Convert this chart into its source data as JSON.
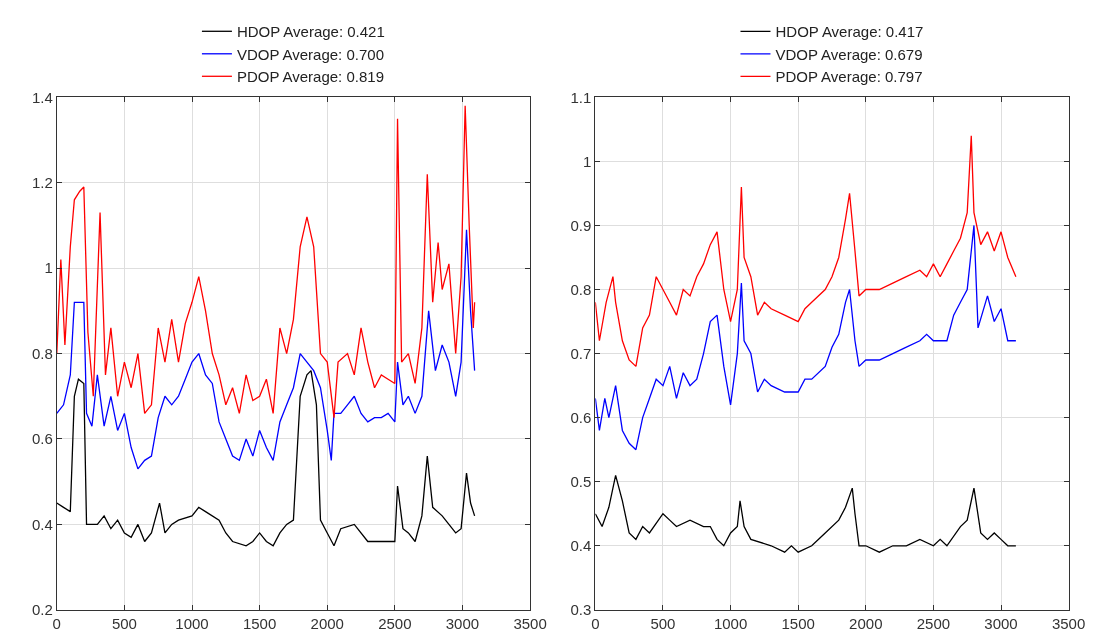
{
  "chart_data": [
    {
      "type": "line",
      "xlim": [
        0,
        3500
      ],
      "xticks": [
        0,
        500,
        1000,
        1500,
        2000,
        2500,
        3000,
        3500
      ],
      "ylim": [
        0.2,
        1.4
      ],
      "yticks": [
        0.2,
        0.4,
        0.6,
        0.8,
        1,
        1.2,
        1.4
      ],
      "grid": true,
      "legend": "top",
      "marker": "none",
      "line_style": "solid",
      "series": [
        {
          "name": "HDOP Average: 0.421",
          "color": "#000000",
          "x": [
            0,
            50,
            100,
            130,
            160,
            200,
            220,
            300,
            350,
            400,
            450,
            500,
            550,
            600,
            650,
            700,
            760,
            800,
            850,
            900,
            1000,
            1050,
            1100,
            1200,
            1250,
            1300,
            1400,
            1450,
            1500,
            1550,
            1600,
            1650,
            1700,
            1750,
            1800,
            1850,
            1880,
            1920,
            1950,
            2000,
            2050,
            2100,
            2200,
            2300,
            2400,
            2500,
            2520,
            2560,
            2600,
            2650,
            2700,
            2740,
            2780,
            2850,
            2900,
            2950,
            2990,
            3030,
            3060,
            3090
          ],
          "values": [
            0.45,
            0.44,
            0.43,
            0.7,
            0.74,
            0.73,
            0.4,
            0.4,
            0.42,
            0.39,
            0.41,
            0.38,
            0.37,
            0.4,
            0.36,
            0.38,
            0.45,
            0.38,
            0.4,
            0.41,
            0.42,
            0.44,
            0.43,
            0.41,
            0.38,
            0.36,
            0.35,
            0.36,
            0.38,
            0.36,
            0.35,
            0.38,
            0.4,
            0.41,
            0.7,
            0.75,
            0.76,
            0.68,
            0.41,
            0.38,
            0.35,
            0.39,
            0.4,
            0.36,
            0.36,
            0.36,
            0.49,
            0.39,
            0.38,
            0.36,
            0.42,
            0.56,
            0.44,
            0.42,
            0.4,
            0.38,
            0.39,
            0.52,
            0.45,
            0.42
          ]
        },
        {
          "name": "VDOP Average: 0.700",
          "color": "#0000ff",
          "x": [
            0,
            50,
            100,
            130,
            200,
            220,
            260,
            300,
            350,
            400,
            450,
            500,
            550,
            600,
            650,
            700,
            750,
            800,
            850,
            900,
            950,
            1000,
            1050,
            1100,
            1150,
            1200,
            1250,
            1300,
            1350,
            1400,
            1450,
            1500,
            1550,
            1600,
            1650,
            1700,
            1750,
            1800,
            1850,
            1900,
            1950,
            2000,
            2030,
            2050,
            2100,
            2150,
            2200,
            2250,
            2300,
            2350,
            2400,
            2450,
            2500,
            2520,
            2560,
            2600,
            2650,
            2700,
            2750,
            2800,
            2850,
            2900,
            2950,
            2990,
            3030,
            3060,
            3090
          ],
          "values": [
            0.66,
            0.68,
            0.75,
            0.92,
            0.92,
            0.66,
            0.63,
            0.75,
            0.63,
            0.7,
            0.62,
            0.66,
            0.58,
            0.53,
            0.55,
            0.56,
            0.65,
            0.7,
            0.68,
            0.7,
            0.74,
            0.78,
            0.8,
            0.75,
            0.73,
            0.64,
            0.6,
            0.56,
            0.55,
            0.6,
            0.56,
            0.62,
            0.58,
            0.55,
            0.64,
            0.68,
            0.72,
            0.8,
            0.78,
            0.76,
            0.72,
            0.62,
            0.55,
            0.66,
            0.66,
            0.68,
            0.7,
            0.66,
            0.64,
            0.65,
            0.65,
            0.66,
            0.64,
            0.78,
            0.68,
            0.7,
            0.66,
            0.7,
            0.9,
            0.76,
            0.82,
            0.78,
            0.7,
            0.78,
            1.09,
            0.9,
            0.76
          ]
        },
        {
          "name": "PDOP Average: 0.819",
          "color": "#ff0000",
          "x": [
            0,
            30,
            60,
            100,
            130,
            170,
            200,
            230,
            270,
            320,
            360,
            400,
            450,
            500,
            550,
            600,
            650,
            700,
            750,
            800,
            850,
            900,
            950,
            1000,
            1050,
            1100,
            1150,
            1200,
            1250,
            1300,
            1350,
            1400,
            1450,
            1500,
            1550,
            1600,
            1650,
            1700,
            1750,
            1800,
            1850,
            1900,
            1950,
            2000,
            2050,
            2080,
            2150,
            2200,
            2250,
            2300,
            2350,
            2400,
            2450,
            2500,
            2520,
            2550,
            2600,
            2650,
            2700,
            2740,
            2780,
            2820,
            2850,
            2900,
            2950,
            2990,
            3020,
            3050,
            3080,
            3090
          ],
          "values": [
            0.8,
            1.02,
            0.82,
            1.05,
            1.16,
            1.18,
            1.19,
            0.85,
            0.7,
            1.13,
            0.75,
            0.86,
            0.7,
            0.78,
            0.72,
            0.8,
            0.66,
            0.68,
            0.86,
            0.78,
            0.88,
            0.78,
            0.87,
            0.92,
            0.98,
            0.9,
            0.8,
            0.75,
            0.68,
            0.72,
            0.66,
            0.75,
            0.69,
            0.7,
            0.74,
            0.66,
            0.86,
            0.8,
            0.88,
            1.05,
            1.12,
            1.05,
            0.8,
            0.78,
            0.65,
            0.78,
            0.8,
            0.75,
            0.86,
            0.78,
            0.72,
            0.75,
            0.74,
            0.73,
            1.35,
            0.78,
            0.8,
            0.73,
            0.86,
            1.22,
            0.92,
            1.06,
            0.95,
            1.01,
            0.8,
            0.98,
            1.38,
            1.1,
            0.86,
            0.92
          ]
        }
      ]
    },
    {
      "type": "line",
      "xlim": [
        0,
        3500
      ],
      "xticks": [
        0,
        500,
        1000,
        1500,
        2000,
        2500,
        3000,
        3500
      ],
      "ylim": [
        0.3,
        1.1
      ],
      "yticks": [
        0.3,
        0.4,
        0.5,
        0.6,
        0.7,
        0.8,
        0.9,
        1,
        1.1
      ],
      "grid": true,
      "legend": "top",
      "marker": "none",
      "line_style": "solid",
      "series": [
        {
          "name": "HDOP Average: 0.417",
          "color": "#000000",
          "x": [
            0,
            50,
            100,
            150,
            200,
            250,
            300,
            350,
            400,
            500,
            550,
            600,
            700,
            800,
            850,
            900,
            950,
            1000,
            1050,
            1070,
            1100,
            1150,
            1300,
            1400,
            1450,
            1500,
            1600,
            1700,
            1800,
            1850,
            1900,
            1920,
            1950,
            2000,
            2100,
            2200,
            2300,
            2400,
            2500,
            2550,
            2600,
            2700,
            2750,
            2800,
            2850,
            2900,
            2950,
            3000,
            3050,
            3110
          ],
          "values": [
            0.45,
            0.43,
            0.46,
            0.51,
            0.47,
            0.42,
            0.41,
            0.43,
            0.42,
            0.45,
            0.44,
            0.43,
            0.44,
            0.43,
            0.43,
            0.41,
            0.4,
            0.42,
            0.43,
            0.47,
            0.43,
            0.41,
            0.4,
            0.39,
            0.4,
            0.39,
            0.4,
            0.42,
            0.44,
            0.46,
            0.49,
            0.45,
            0.4,
            0.4,
            0.39,
            0.4,
            0.4,
            0.41,
            0.4,
            0.41,
            0.4,
            0.43,
            0.44,
            0.49,
            0.42,
            0.41,
            0.42,
            0.41,
            0.4,
            0.4
          ]
        },
        {
          "name": "VDOP Average: 0.679",
          "color": "#0000ff",
          "x": [
            0,
            30,
            70,
            100,
            150,
            200,
            250,
            300,
            350,
            400,
            450,
            500,
            550,
            600,
            650,
            700,
            750,
            800,
            850,
            900,
            950,
            1000,
            1050,
            1080,
            1100,
            1150,
            1200,
            1250,
            1300,
            1400,
            1500,
            1550,
            1600,
            1700,
            1750,
            1800,
            1850,
            1880,
            1920,
            1950,
            2000,
            2100,
            2200,
            2300,
            2400,
            2450,
            2500,
            2550,
            2600,
            2650,
            2700,
            2750,
            2800,
            2830,
            2900,
            2950,
            3000,
            3050,
            3110
          ],
          "values": [
            0.63,
            0.58,
            0.63,
            0.6,
            0.65,
            0.58,
            0.56,
            0.55,
            0.6,
            0.63,
            0.66,
            0.65,
            0.68,
            0.63,
            0.67,
            0.65,
            0.66,
            0.7,
            0.75,
            0.76,
            0.68,
            0.62,
            0.7,
            0.81,
            0.72,
            0.7,
            0.64,
            0.66,
            0.65,
            0.64,
            0.64,
            0.66,
            0.66,
            0.68,
            0.71,
            0.73,
            0.78,
            0.8,
            0.72,
            0.68,
            0.69,
            0.69,
            0.7,
            0.71,
            0.72,
            0.73,
            0.72,
            0.72,
            0.72,
            0.76,
            0.78,
            0.8,
            0.9,
            0.74,
            0.79,
            0.75,
            0.77,
            0.72,
            0.72
          ]
        },
        {
          "name": "PDOP Average: 0.797",
          "color": "#ff0000",
          "x": [
            0,
            30,
            80,
            130,
            150,
            200,
            250,
            300,
            350,
            400,
            450,
            500,
            550,
            600,
            650,
            700,
            750,
            800,
            850,
            900,
            950,
            1000,
            1050,
            1080,
            1100,
            1150,
            1200,
            1250,
            1300,
            1400,
            1500,
            1550,
            1600,
            1700,
            1750,
            1800,
            1850,
            1880,
            1920,
            1950,
            2000,
            2100,
            2200,
            2300,
            2400,
            2450,
            2500,
            2550,
            2600,
            2650,
            2700,
            2750,
            2780,
            2800,
            2850,
            2900,
            2950,
            3000,
            3050,
            3110
          ],
          "values": [
            0.78,
            0.72,
            0.78,
            0.82,
            0.78,
            0.72,
            0.69,
            0.68,
            0.74,
            0.76,
            0.82,
            0.8,
            0.78,
            0.76,
            0.8,
            0.79,
            0.82,
            0.84,
            0.87,
            0.89,
            0.8,
            0.75,
            0.8,
            0.96,
            0.85,
            0.82,
            0.76,
            0.78,
            0.77,
            0.76,
            0.75,
            0.77,
            0.78,
            0.8,
            0.82,
            0.85,
            0.91,
            0.95,
            0.86,
            0.79,
            0.8,
            0.8,
            0.81,
            0.82,
            0.83,
            0.82,
            0.84,
            0.82,
            0.84,
            0.86,
            0.88,
            0.92,
            1.04,
            0.92,
            0.87,
            0.89,
            0.86,
            0.89,
            0.85,
            0.82
          ]
        }
      ]
    }
  ]
}
